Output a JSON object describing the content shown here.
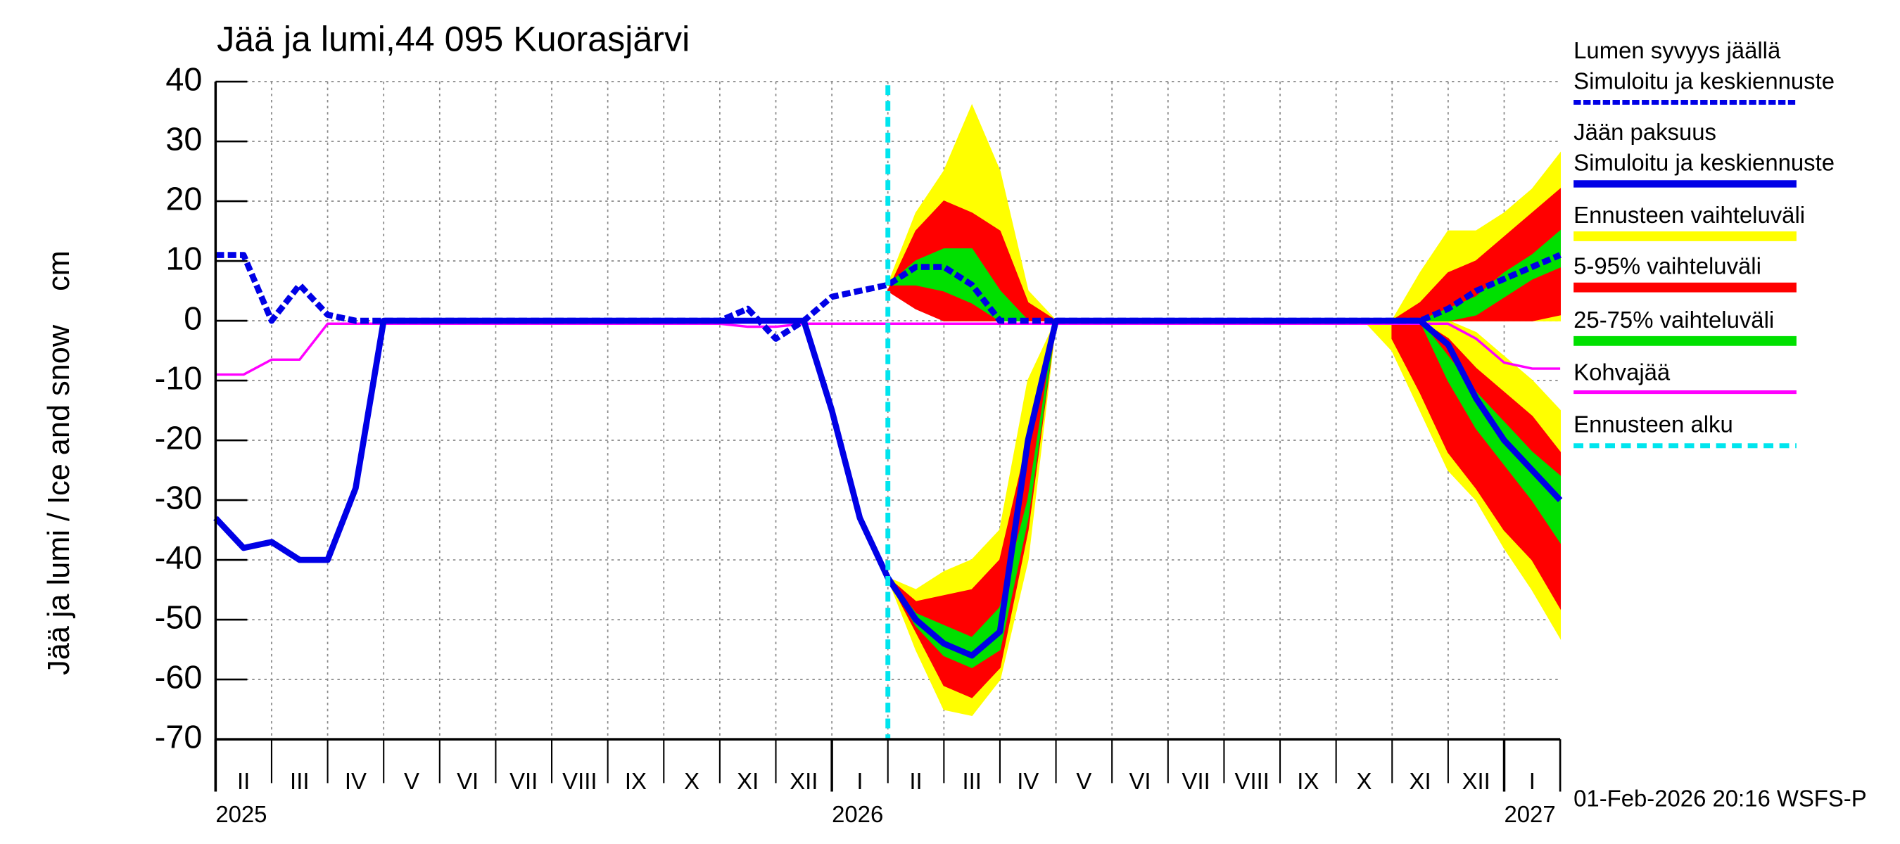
{
  "chart_data": {
    "type": "line",
    "title": "Jää ja lumi,44 095 Kuorasjärvi",
    "ylabel": "Jää ja lumi / Ice and snow    cm",
    "footer": "01-Feb-2026 20:16 WSFS-P",
    "xlim": [
      0,
      24
    ],
    "ylim": [
      -70,
      40
    ],
    "yticks": [
      -70,
      -60,
      -50,
      -40,
      -30,
      -20,
      -10,
      0,
      10,
      20,
      30,
      40
    ],
    "xticks": [
      {
        "value": 0.5,
        "label": "II"
      },
      {
        "value": 1.5,
        "label": "III"
      },
      {
        "value": 2.5,
        "label": "IV"
      },
      {
        "value": 3.5,
        "label": "V"
      },
      {
        "value": 4.5,
        "label": "VI"
      },
      {
        "value": 5.5,
        "label": "VII"
      },
      {
        "value": 6.5,
        "label": "VIII"
      },
      {
        "value": 7.5,
        "label": "IX"
      },
      {
        "value": 8.5,
        "label": "X"
      },
      {
        "value": 9.5,
        "label": "XI"
      },
      {
        "value": 10.5,
        "label": "XII"
      },
      {
        "value": 11.5,
        "label": "I"
      },
      {
        "value": 12.5,
        "label": "II"
      },
      {
        "value": 13.5,
        "label": "III"
      },
      {
        "value": 14.5,
        "label": "IV"
      },
      {
        "value": 15.5,
        "label": "V"
      },
      {
        "value": 16.5,
        "label": "VI"
      },
      {
        "value": 17.5,
        "label": "VII"
      },
      {
        "value": 18.5,
        "label": "VIII"
      },
      {
        "value": 19.5,
        "label": "IX"
      },
      {
        "value": 20.5,
        "label": "X"
      },
      {
        "value": 21.5,
        "label": "XI"
      },
      {
        "value": 22.5,
        "label": "XII"
      },
      {
        "value": 23.5,
        "label": "I"
      }
    ],
    "years": [
      {
        "value": 0,
        "label": "2025"
      },
      {
        "value": 11,
        "label": "2026"
      },
      {
        "value": 23,
        "label": "2027"
      }
    ],
    "grid": true,
    "x": [
      0,
      0.5,
      1,
      1.5,
      2,
      2.5,
      3,
      3.5,
      4,
      4.5,
      5,
      5.5,
      6,
      6.5,
      7,
      7.5,
      8,
      8.5,
      9,
      9.5,
      10,
      10.5,
      11,
      11.5,
      12,
      12.5,
      13,
      13.5,
      14,
      14.5,
      15,
      15.5,
      16,
      16.5,
      17,
      17.5,
      18,
      18.5,
      19,
      19.5,
      20,
      20.5,
      21,
      21.5,
      22,
      22.5,
      23,
      23.5,
      24
    ],
    "bands": [
      {
        "name": "Ennusteen vaihteluväli",
        "color": "#ffff00",
        "areas": [
          {
            "x": [
              12,
              12.5,
              13,
              13.5,
              14,
              14.5,
              15
            ],
            "upper": [
              6,
              18,
              25,
              36,
              25,
              5,
              0
            ],
            "lower": [
              6,
              3,
              0,
              0,
              0,
              0,
              0
            ]
          },
          {
            "x": [
              21,
              21.5,
              22,
              22.5,
              23,
              23.5,
              24
            ],
            "upper": [
              0,
              8,
              15,
              15,
              18,
              22,
              28
            ],
            "lower": [
              0,
              0,
              0,
              0,
              0,
              0,
              0
            ]
          },
          {
            "x": [
              12,
              12.5,
              13,
              13.5,
              14,
              14.5,
              15
            ],
            "upper": [
              -43,
              -45,
              -42,
              -40,
              -35,
              -10,
              0
            ],
            "lower": [
              -43,
              -55,
              -65,
              -66,
              -60,
              -40,
              0
            ]
          },
          {
            "x": [
              20.5,
              21,
              21.5,
              22,
              22.5,
              23,
              23.5,
              24
            ],
            "upper": [
              0,
              0,
              0,
              0,
              -2,
              -6,
              -10,
              -15
            ],
            "lower": [
              0,
              -5,
              -15,
              -25,
              -30,
              -38,
              -45,
              -53
            ]
          }
        ]
      },
      {
        "name": "5-95% vaihteluväli",
        "color": "#ff0000",
        "areas": [
          {
            "x": [
              12,
              12.5,
              13,
              13.5,
              14,
              14.5,
              15
            ],
            "upper": [
              5,
              15,
              20,
              18,
              15,
              3,
              0
            ],
            "lower": [
              5,
              2,
              0,
              0,
              0,
              0,
              0
            ]
          },
          {
            "x": [
              21,
              21.5,
              22,
              22.5,
              23,
              23.5,
              24
            ],
            "upper": [
              0,
              3,
              8,
              10,
              14,
              18,
              22
            ],
            "lower": [
              0,
              0,
              0,
              0,
              0,
              0,
              1
            ]
          },
          {
            "x": [
              12,
              12.5,
              13,
              13.5,
              14,
              14.5,
              15
            ],
            "upper": [
              -43,
              -47,
              -46,
              -45,
              -40,
              -20,
              0
            ],
            "lower": [
              -43,
              -52,
              -61,
              -63,
              -58,
              -35,
              0
            ]
          },
          {
            "x": [
              21,
              21.5,
              22,
              22.5,
              23,
              23.5,
              24
            ],
            "upper": [
              0,
              0,
              -3,
              -8,
              -12,
              -16,
              -22
            ],
            "lower": [
              -3,
              -12,
              -22,
              -28,
              -35,
              -40,
              -48
            ]
          }
        ]
      },
      {
        "name": "25-75% vaihteluväli",
        "color": "#00e000",
        "areas": [
          {
            "x": [
              12,
              12.5,
              13,
              13.5,
              14,
              14.5
            ],
            "upper": [
              6,
              10,
              12,
              12,
              5,
              0
            ],
            "lower": [
              6,
              6,
              5,
              3,
              0,
              0
            ]
          },
          {
            "x": [
              21,
              21.5,
              22,
              22.5,
              23,
              23.5,
              24
            ],
            "upper": [
              0,
              0,
              2,
              4,
              8,
              11,
              15
            ],
            "lower": [
              0,
              0,
              0,
              1,
              4,
              7,
              9
            ]
          },
          {
            "x": [
              12,
              12.5,
              13,
              13.5,
              14,
              14.5,
              15
            ],
            "upper": [
              -43,
              -49,
              -51,
              -53,
              -48,
              -30,
              0
            ],
            "lower": [
              -43,
              -51,
              -56,
              -58,
              -55,
              -33,
              0
            ]
          },
          {
            "x": [
              21,
              21.5,
              22,
              22.5,
              23,
              23.5,
              24
            ],
            "upper": [
              0,
              0,
              -6,
              -12,
              -17,
              -22,
              -26
            ],
            "lower": [
              0,
              0,
              -10,
              -18,
              -24,
              -30,
              -37
            ]
          }
        ]
      }
    ],
    "series": [
      {
        "name": "Lumen syvyys jäällä",
        "subname": "Simuloitu ja keskiennuste",
        "color": "#0000e6",
        "dashed": true,
        "values": [
          11,
          11,
          0,
          6,
          1,
          0,
          0,
          0,
          0,
          0,
          0,
          0,
          0,
          0,
          0,
          0,
          0,
          0,
          0,
          2,
          -3,
          0,
          4,
          5,
          6,
          9,
          9,
          6,
          0,
          0,
          0,
          0,
          0,
          0,
          0,
          0,
          0,
          0,
          0,
          0,
          0,
          0,
          0,
          0,
          2,
          5,
          7,
          9,
          11
        ]
      },
      {
        "name": "Jään paksuus",
        "subname": "Simuloitu ja keskiennuste",
        "color": "#0000e6",
        "dashed": false,
        "values": [
          -33,
          -38,
          -37,
          -40,
          -40,
          -28,
          0,
          0,
          0,
          0,
          0,
          0,
          0,
          0,
          0,
          0,
          0,
          0,
          0,
          0,
          0,
          0,
          -15,
          -33,
          -43,
          -50,
          -54,
          -56,
          -52,
          -20,
          0,
          0,
          0,
          0,
          0,
          0,
          0,
          0,
          0,
          0,
          0,
          0,
          0,
          0,
          -4,
          -13,
          -20,
          -25,
          -30
        ]
      },
      {
        "name": "Kohvajää",
        "color": "#ff00ff",
        "dashed": false,
        "thin": true,
        "values": [
          -9,
          -9,
          -6.5,
          -6.5,
          -0.5,
          -0.5,
          -0.5,
          -0.5,
          -0.5,
          -0.5,
          -0.5,
          -0.5,
          -0.5,
          -0.5,
          -0.5,
          -0.5,
          -0.5,
          -0.5,
          -0.5,
          -1,
          -1,
          -0.5,
          -0.5,
          -0.5,
          -0.5,
          -0.5,
          -0.5,
          -0.5,
          -0.5,
          -0.5,
          -0.5,
          -0.5,
          -0.5,
          -0.5,
          -0.5,
          -0.5,
          -0.5,
          -0.5,
          -0.5,
          -0.5,
          -0.5,
          -0.5,
          -0.5,
          -0.5,
          -0.5,
          -3,
          -7,
          -8,
          -8
        ]
      }
    ],
    "forecast_start": {
      "name": "Ennusteen alku",
      "value": 12,
      "color": "#00e5ee"
    }
  }
}
